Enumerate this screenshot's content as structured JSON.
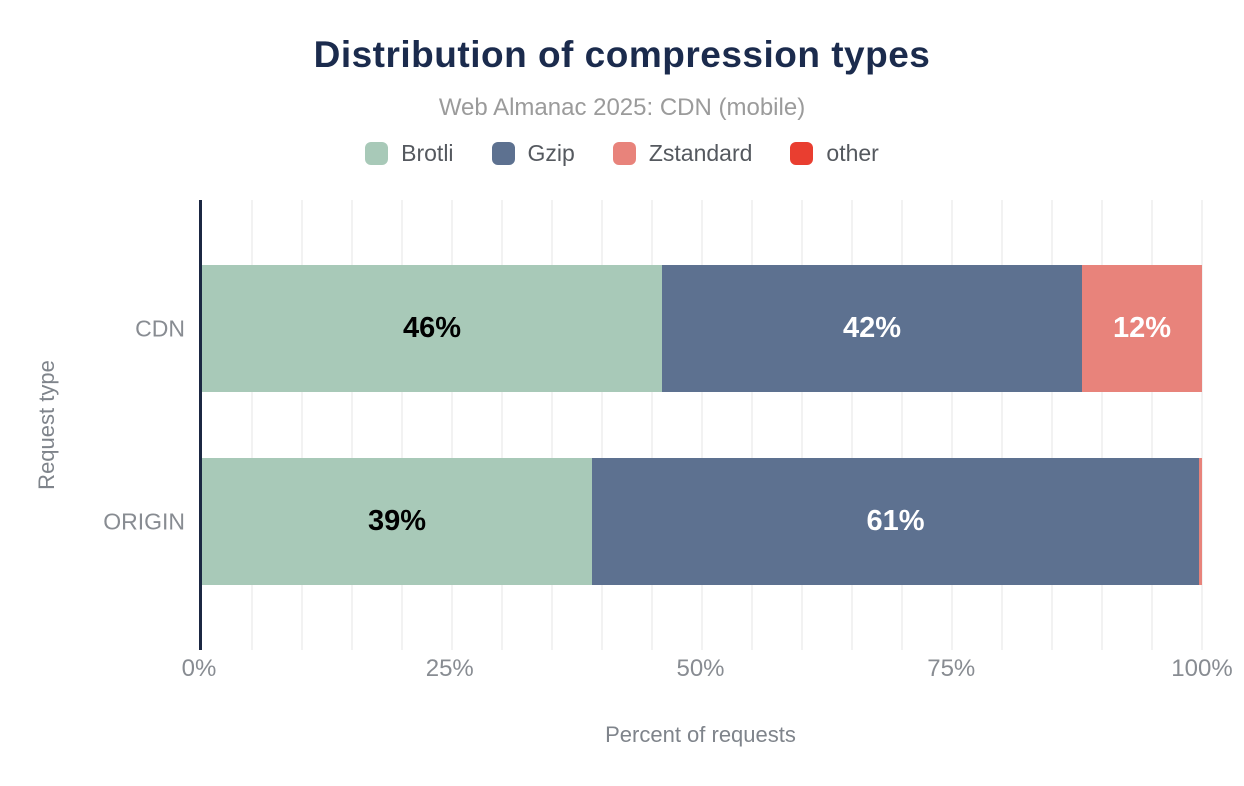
{
  "header": {
    "title": "Distribution of compression types",
    "subtitle": "Web Almanac 2025: CDN (mobile)"
  },
  "chart_data": {
    "type": "bar",
    "orientation": "horizontal",
    "stacked": true,
    "title": "Distribution of compression types",
    "subtitle": "Web Almanac 2025: CDN (mobile)",
    "xlabel": "Percent of requests",
    "ylabel": "Request type",
    "xlim": [
      0,
      100
    ],
    "grid": "vertical minor gridlines every 5%",
    "legend_position": "top",
    "categories": [
      "CDN",
      "ORIGIN"
    ],
    "series": [
      {
        "name": "Brotli",
        "color": "#a8c9b8",
        "values": [
          46,
          39
        ],
        "labels": [
          "46%",
          "39%"
        ],
        "label_color": "#000000"
      },
      {
        "name": "Gzip",
        "color": "#5d7190",
        "values": [
          42,
          60.7
        ],
        "labels": [
          "42%",
          "61%"
        ],
        "label_color": "#ffffff"
      },
      {
        "name": "Zstandard",
        "color": "#e8837b",
        "values": [
          12,
          0.3
        ],
        "labels": [
          "12%",
          ""
        ],
        "label_color": "#ffffff"
      },
      {
        "name": "other",
        "color": "#e93e30",
        "values": [
          0,
          0
        ],
        "labels": [
          "",
          ""
        ],
        "label_color": "#ffffff"
      }
    ],
    "x_ticks": [
      {
        "value": 0,
        "label": "0%"
      },
      {
        "value": 25,
        "label": "25%"
      },
      {
        "value": 50,
        "label": "50%"
      },
      {
        "value": 75,
        "label": "75%"
      },
      {
        "value": 100,
        "label": "100%"
      }
    ]
  },
  "colors": {
    "title": "#1b2b4d",
    "subtitle": "#9b9b9b",
    "axis_line": "#1b2742",
    "gridline": "#f2f2f2",
    "axis_text": "#888c92"
  }
}
